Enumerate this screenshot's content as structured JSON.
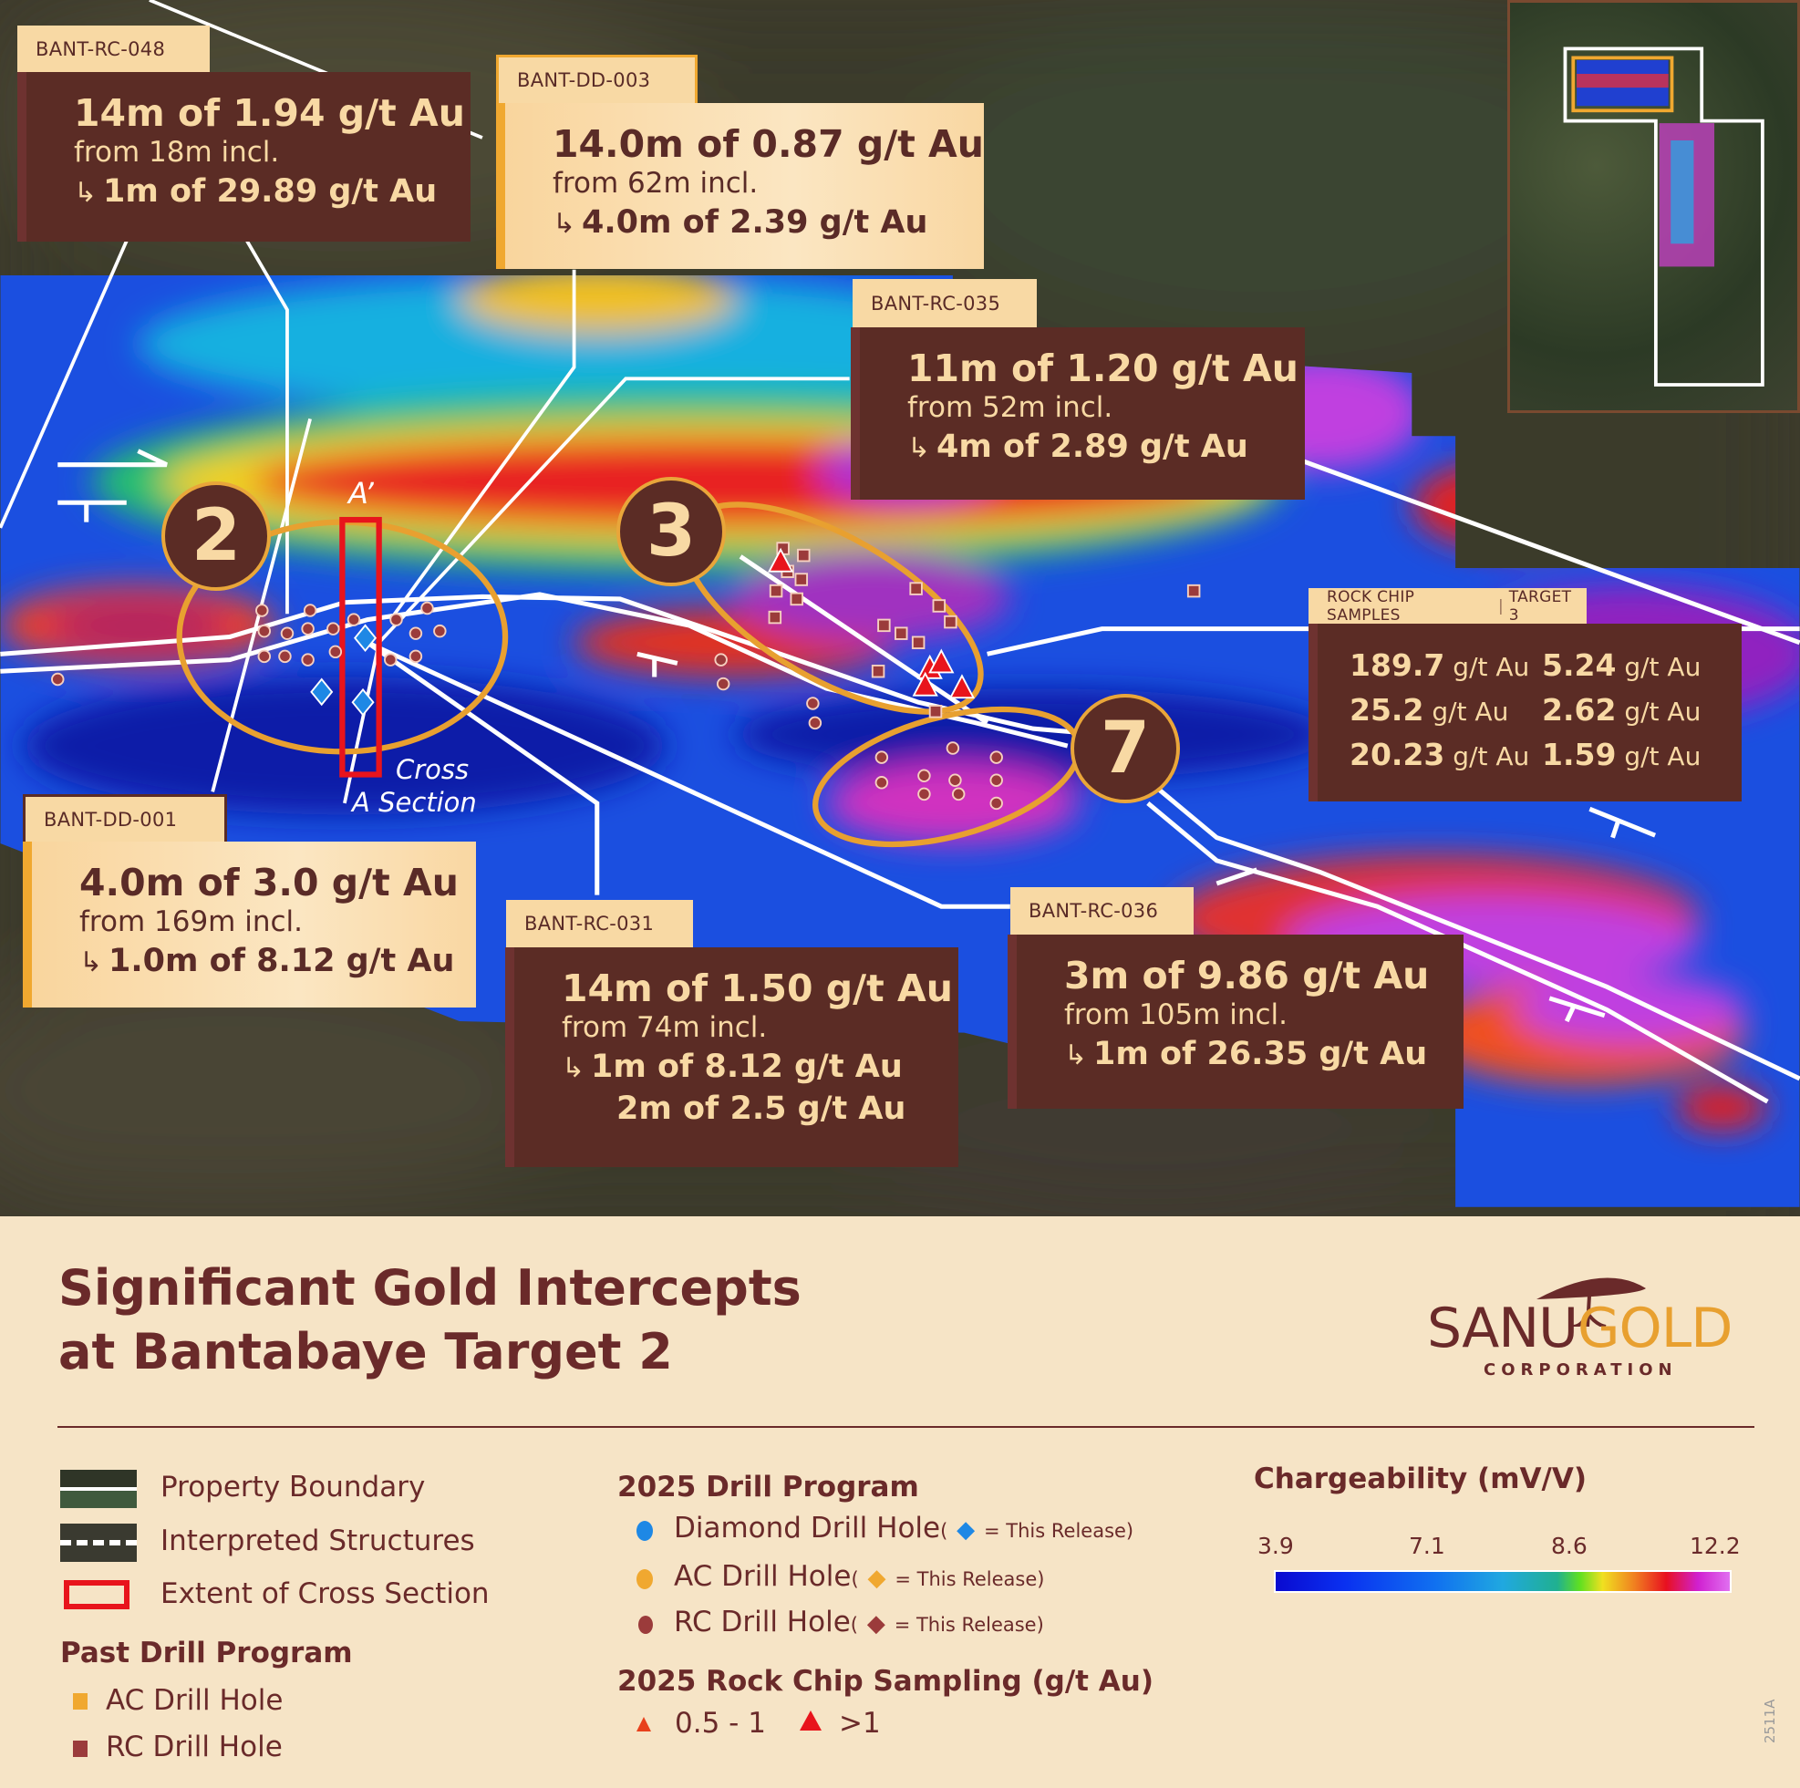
{
  "title": {
    "line1": "Significant Gold Intercepts",
    "line2": "at Bantabaye Target 2"
  },
  "logo": {
    "name_a": "SANU",
    "name_b": "GOLD",
    "sub": "CORPORATION"
  },
  "callouts": [
    {
      "tab": "BANT-RC-048",
      "l1": "14m of 1.94 g/t Au",
      "l2": "from 18m incl.",
      "l3": "1m of 29.89 g/t Au"
    },
    {
      "tab": "BANT-DD-003",
      "l1": "14.0m of 0.87 g/t Au",
      "l2": "from 62m incl.",
      "l3": "4.0m of 2.39 g/t Au"
    },
    {
      "tab": "BANT-RC-035",
      "l1": "11m of 1.20 g/t Au",
      "l2": "from 52m incl.",
      "l3": "4m of 2.89 g/t Au"
    },
    {
      "tab": "BANT-DD-001",
      "l1": "4.0m of 3.0 g/t Au",
      "l2": "from 169m incl.",
      "l3": "1.0m of 8.12 g/t Au"
    },
    {
      "tab": "BANT-RC-031",
      "l1": "14m of 1.50 g/t Au",
      "l2": "from 74m incl.",
      "l3": "1m of 8.12 g/t Au",
      "l4": "2m of 2.5 g/t Au"
    },
    {
      "tab": "BANT-RC-036",
      "l1": "3m of 9.86 g/t Au",
      "l2": "from 105m incl.",
      "l3": "1m of 26.35 g/t Au"
    }
  ],
  "arrow_glyph": "↳",
  "rock_chip": {
    "tab_a": "ROCK CHIP SAMPLES",
    "sep": "|",
    "tab_b": "TARGET 3",
    "unit": "g/t Au",
    "values": [
      "189.7",
      "5.24",
      "25.2",
      "2.62",
      "20.23",
      "1.59"
    ]
  },
  "targets": [
    "2",
    "3",
    "7"
  ],
  "section": {
    "a_prime": "A’",
    "a": "A",
    "label_1": "Cross",
    "label_2": "Section"
  },
  "legend": {
    "property_boundary": "Property Boundary",
    "interpreted_structures": "Interpreted Structures",
    "cross_section": "Extent of Cross Section",
    "past_title": "Past Drill Program",
    "past_ac": "AC Drill Hole",
    "past_rc": "RC Drill Hole",
    "drill_title": "2025 Drill Program",
    "diamond": "Diamond Drill Hole",
    "ac": "AC Drill Hole",
    "rc": "RC Drill Hole",
    "paren_open": "(",
    "this_release": "= This Release)",
    "rock_title": "2025 Rock Chip Sampling (g/t Au)",
    "rock_low": "0.5 - 1",
    "rock_high": ">1",
    "charge_title": "Chargeability (mV/V)",
    "charge_ticks": [
      "3.9",
      "7.1",
      "8.6",
      "12.2"
    ],
    "colors": {
      "diamond": "#1e88e5",
      "ac": "#f0a830",
      "rc": "#9b3b3b",
      "cross_section": "#e8141c"
    }
  },
  "doc_code": "2511A"
}
